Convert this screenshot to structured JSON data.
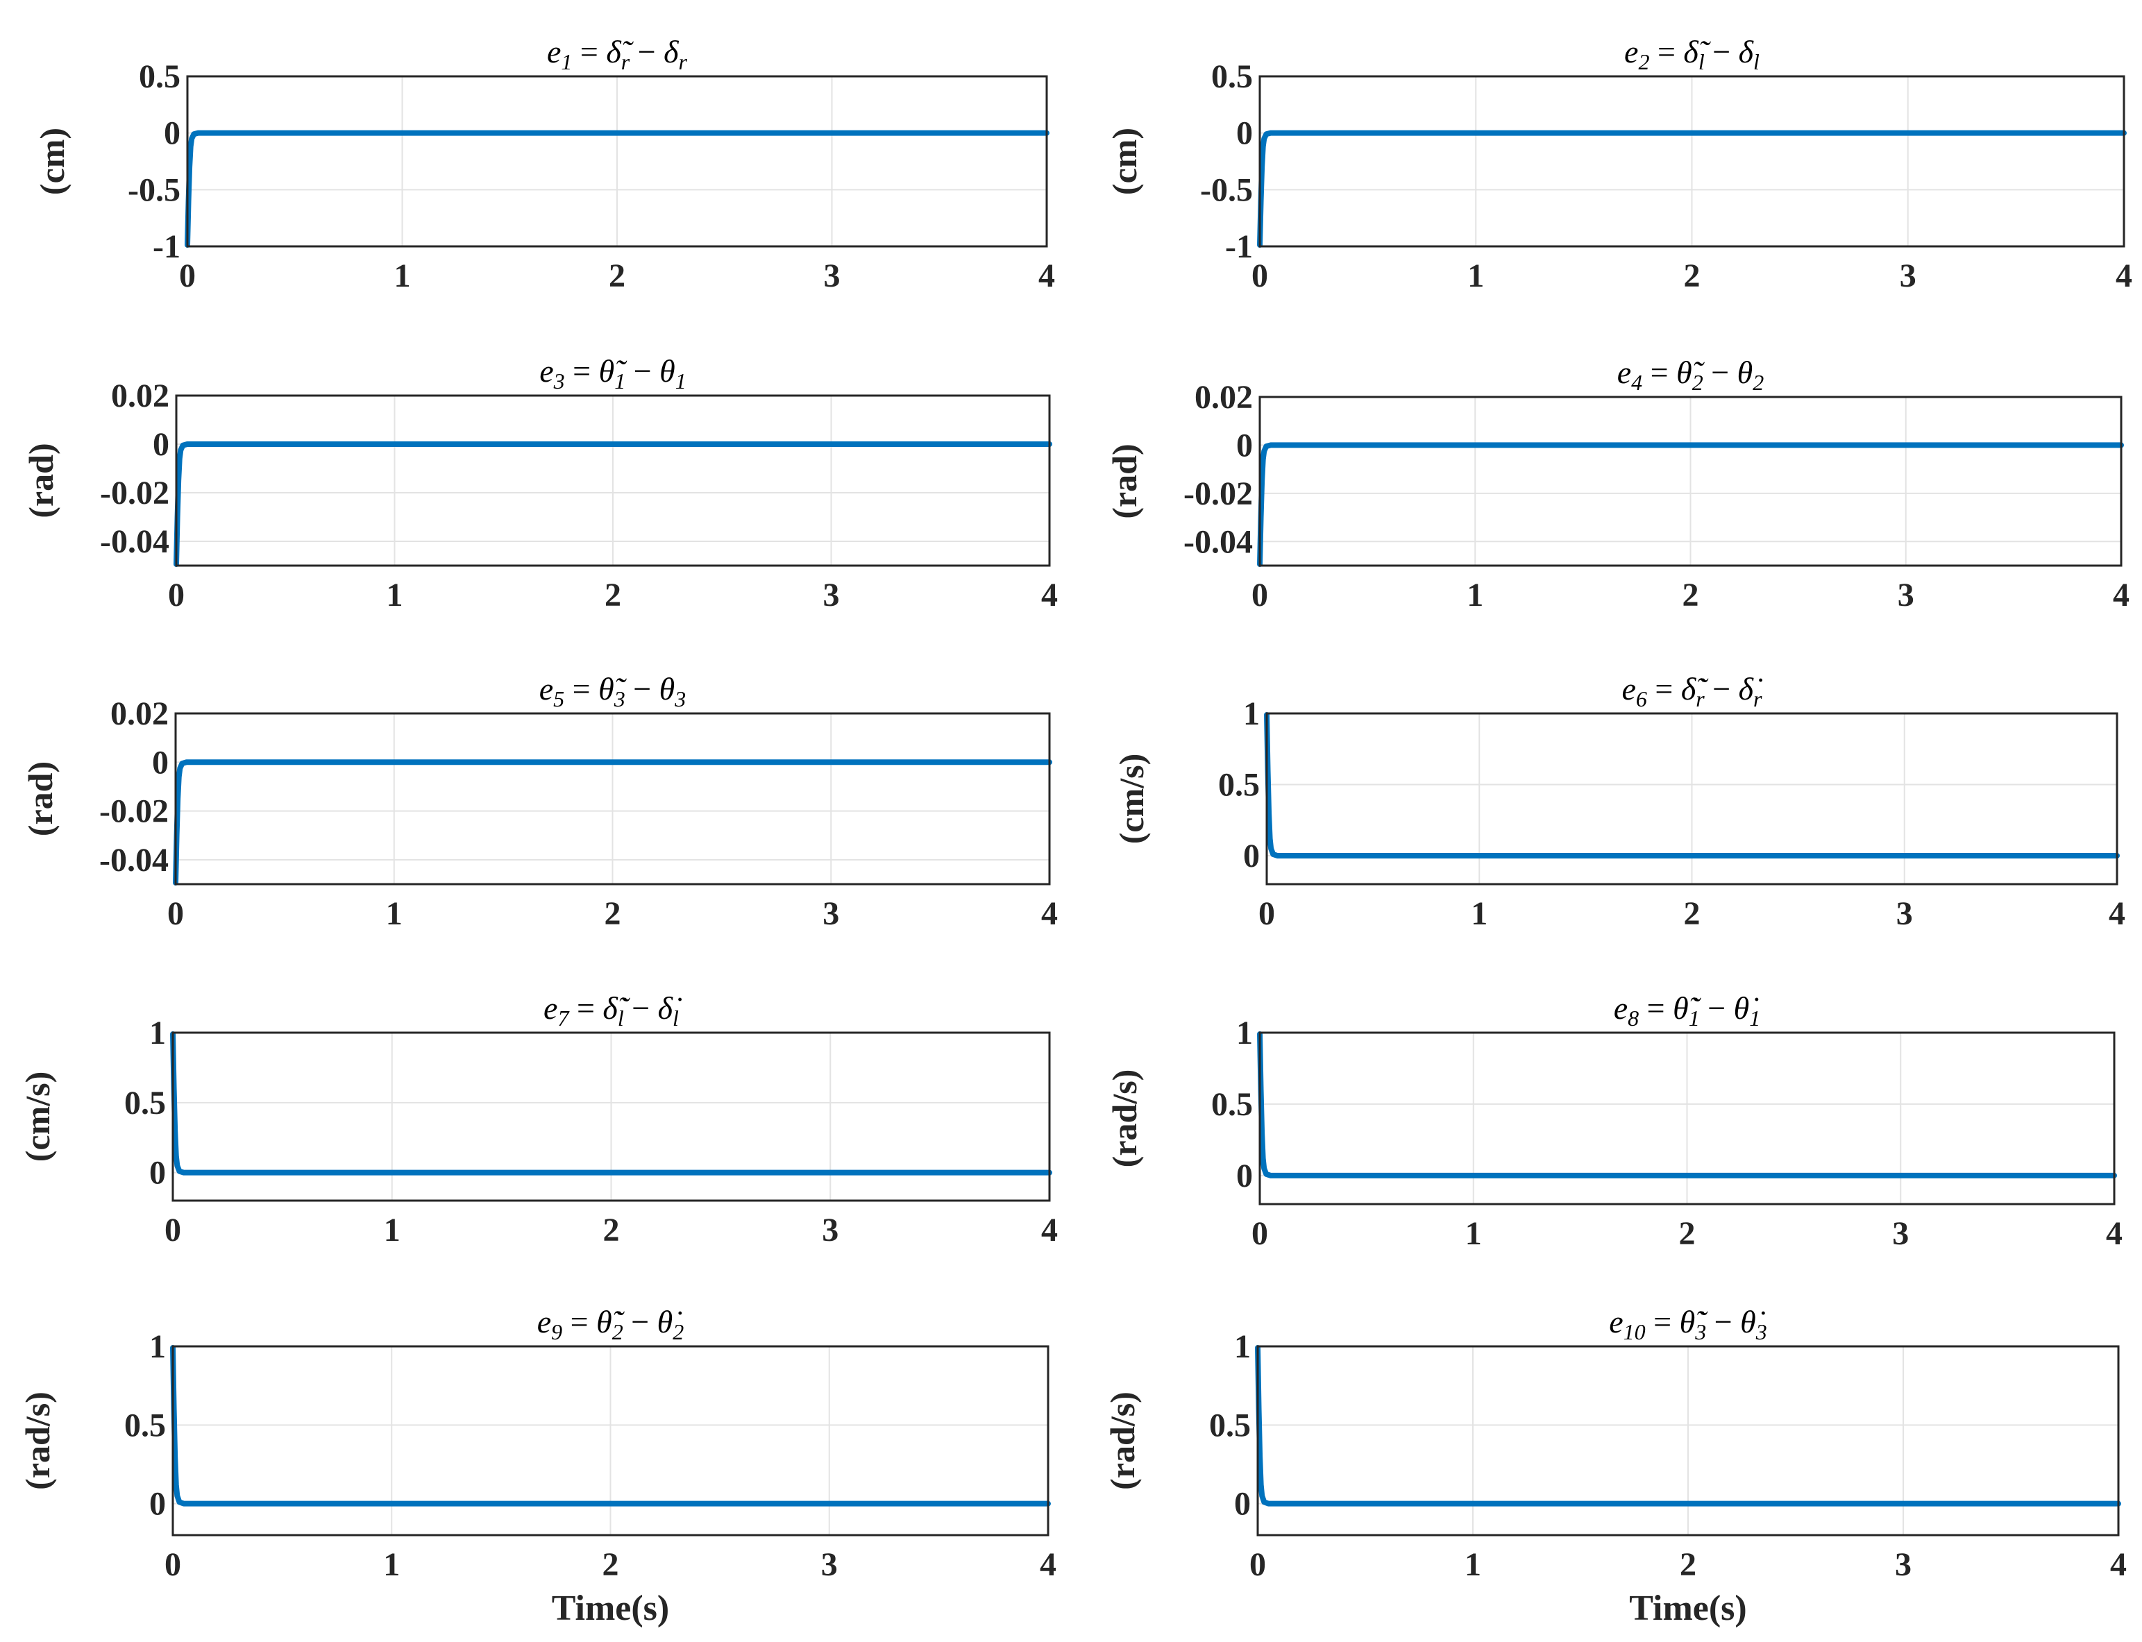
{
  "figure": {
    "background": "#ffffff",
    "series_color": "#0072bd",
    "grid_color": "#e3e3e3",
    "axis_color": "#262626"
  },
  "chart_data": [
    {
      "type": "line",
      "title": "e1 = δ̃r − δr",
      "title_parts": {
        "var": "e",
        "sub": "1",
        "base": "δ",
        "mark": "̃",
        "sub2": "r"
      },
      "xlabel": "",
      "ylabel": "(cm)",
      "xlim": [
        0,
        4
      ],
      "ylim": [
        -1,
        0.5
      ],
      "xticks": [
        "0",
        "1",
        "2",
        "3",
        "4"
      ],
      "yticks": [
        {
          "v": -1,
          "t": "-1"
        },
        {
          "v": -0.5,
          "t": "-0.5"
        },
        {
          "v": 0,
          "t": "0"
        },
        {
          "v": 0.5,
          "t": "0.5"
        }
      ],
      "series": [
        {
          "name": "e1",
          "x": [
            0,
            0.005,
            0.01,
            0.015,
            0.02,
            0.03,
            0.05,
            0.1,
            4
          ],
          "y": [
            -1,
            -0.6,
            -0.3,
            -0.12,
            -0.05,
            -0.01,
            0,
            0,
            0
          ]
        }
      ]
    },
    {
      "type": "line",
      "title": "e2 = δ̃l − δl",
      "title_parts": {
        "var": "e",
        "sub": "2",
        "base": "δ",
        "mark": "̃",
        "sub2": "l"
      },
      "xlabel": "",
      "ylabel": "(cm)",
      "xlim": [
        0,
        4
      ],
      "ylim": [
        -1,
        0.5
      ],
      "xticks": [
        "0",
        "1",
        "2",
        "3",
        "4"
      ],
      "yticks": [
        {
          "v": -1,
          "t": "-1"
        },
        {
          "v": -0.5,
          "t": "-0.5"
        },
        {
          "v": 0,
          "t": "0"
        },
        {
          "v": 0.5,
          "t": "0.5"
        }
      ],
      "series": [
        {
          "name": "e2",
          "x": [
            0,
            0.005,
            0.01,
            0.015,
            0.02,
            0.03,
            0.05,
            0.1,
            4
          ],
          "y": [
            -1,
            -0.6,
            -0.3,
            -0.12,
            -0.05,
            -0.01,
            0,
            0,
            0
          ]
        }
      ]
    },
    {
      "type": "line",
      "title": "e3 = θ̃1 − θ1",
      "title_parts": {
        "var": "e",
        "sub": "3",
        "base": "θ",
        "mark": "̃",
        "sub2": "1"
      },
      "xlabel": "",
      "ylabel": "(rad)",
      "xlim": [
        0,
        4
      ],
      "ylim": [
        -0.05,
        0.02
      ],
      "xticks": [
        "0",
        "1",
        "2",
        "3",
        "4"
      ],
      "yticks": [
        {
          "v": -0.04,
          "t": "-0.04"
        },
        {
          "v": -0.02,
          "t": "-0.02"
        },
        {
          "v": 0,
          "t": "0"
        },
        {
          "v": 0.02,
          "t": "0.02"
        }
      ],
      "series": [
        {
          "name": "e3",
          "x": [
            0,
            0.005,
            0.01,
            0.015,
            0.02,
            0.03,
            0.05,
            0.1,
            4
          ],
          "y": [
            -0.05,
            -0.03,
            -0.015,
            -0.006,
            -0.0025,
            -0.0005,
            0,
            0,
            0
          ]
        }
      ]
    },
    {
      "type": "line",
      "title": "e4 = θ̃2 − θ2",
      "title_parts": {
        "var": "e",
        "sub": "4",
        "base": "θ",
        "mark": "̃",
        "sub2": "2"
      },
      "xlabel": "",
      "ylabel": "(rad)",
      "xlim": [
        0,
        4
      ],
      "ylim": [
        -0.05,
        0.02
      ],
      "xticks": [
        "0",
        "1",
        "2",
        "3",
        "4"
      ],
      "yticks": [
        {
          "v": -0.04,
          "t": "-0.04"
        },
        {
          "v": -0.02,
          "t": "-0.02"
        },
        {
          "v": 0,
          "t": "0"
        },
        {
          "v": 0.02,
          "t": "0.02"
        }
      ],
      "series": [
        {
          "name": "e4",
          "x": [
            0,
            0.005,
            0.01,
            0.015,
            0.02,
            0.03,
            0.05,
            0.1,
            4
          ],
          "y": [
            -0.05,
            -0.03,
            -0.015,
            -0.006,
            -0.0025,
            -0.0005,
            0,
            0,
            0
          ]
        }
      ]
    },
    {
      "type": "line",
      "title": "e5 = θ̃3 − θ3",
      "title_parts": {
        "var": "e",
        "sub": "5",
        "base": "θ",
        "mark": "̃",
        "sub2": "3"
      },
      "xlabel": "",
      "ylabel": "(rad)",
      "xlim": [
        0,
        4
      ],
      "ylim": [
        -0.05,
        0.02
      ],
      "xticks": [
        "0",
        "1",
        "2",
        "3",
        "4"
      ],
      "yticks": [
        {
          "v": -0.04,
          "t": "-0.04"
        },
        {
          "v": -0.02,
          "t": "-0.02"
        },
        {
          "v": 0,
          "t": "0"
        },
        {
          "v": 0.02,
          "t": "0.02"
        }
      ],
      "series": [
        {
          "name": "e5",
          "x": [
            0,
            0.005,
            0.01,
            0.015,
            0.02,
            0.03,
            0.05,
            0.1,
            4
          ],
          "y": [
            -0.05,
            -0.03,
            -0.015,
            -0.006,
            -0.0025,
            -0.0005,
            0,
            0,
            0
          ]
        }
      ]
    },
    {
      "type": "line",
      "title": "e6 = δ̃̇r − δ̇r",
      "title_parts": {
        "var": "e",
        "sub": "6",
        "base": "δ",
        "mark": "̃̇",
        "sub2": "r"
      },
      "xlabel": "",
      "ylabel": "(cm/s)",
      "xlim": [
        0,
        4
      ],
      "ylim": [
        -0.2,
        1
      ],
      "xticks": [
        "0",
        "1",
        "2",
        "3",
        "4"
      ],
      "yticks": [
        {
          "v": 0,
          "t": "0"
        },
        {
          "v": 0.5,
          "t": "0.5"
        },
        {
          "v": 1,
          "t": "1"
        }
      ],
      "series": [
        {
          "name": "e6",
          "x": [
            0,
            0.005,
            0.01,
            0.015,
            0.02,
            0.03,
            0.05,
            0.1,
            4
          ],
          "y": [
            1,
            0.6,
            0.3,
            0.12,
            0.05,
            0.01,
            0,
            0,
            0
          ]
        }
      ]
    },
    {
      "type": "line",
      "title": "e7 = δ̃̇l − δ̇l",
      "title_parts": {
        "var": "e",
        "sub": "7",
        "base": "δ",
        "mark": "̃̇",
        "sub2": "l"
      },
      "xlabel": "",
      "ylabel": "(cm/s)",
      "xlim": [
        0,
        4
      ],
      "ylim": [
        -0.2,
        1
      ],
      "xticks": [
        "0",
        "1",
        "2",
        "3",
        "4"
      ],
      "yticks": [
        {
          "v": 0,
          "t": "0"
        },
        {
          "v": 0.5,
          "t": "0.5"
        },
        {
          "v": 1,
          "t": "1"
        }
      ],
      "series": [
        {
          "name": "e7",
          "x": [
            0,
            0.005,
            0.01,
            0.015,
            0.02,
            0.03,
            0.05,
            0.1,
            4
          ],
          "y": [
            1,
            0.6,
            0.3,
            0.12,
            0.05,
            0.01,
            0,
            0,
            0
          ]
        }
      ]
    },
    {
      "type": "line",
      "title": "e8 = θ̃̇1 − θ̇1",
      "title_parts": {
        "var": "e",
        "sub": "8",
        "base": "θ",
        "mark": "̃̇",
        "sub2": "1"
      },
      "xlabel": "",
      "ylabel": "(rad/s)",
      "xlim": [
        0,
        4
      ],
      "ylim": [
        -0.2,
        1
      ],
      "xticks": [
        "0",
        "1",
        "2",
        "3",
        "4"
      ],
      "yticks": [
        {
          "v": 0,
          "t": "0"
        },
        {
          "v": 0.5,
          "t": "0.5"
        },
        {
          "v": 1,
          "t": "1"
        }
      ],
      "series": [
        {
          "name": "e8",
          "x": [
            0,
            0.005,
            0.01,
            0.015,
            0.02,
            0.03,
            0.05,
            0.1,
            4
          ],
          "y": [
            1,
            0.6,
            0.3,
            0.12,
            0.05,
            0.01,
            0,
            0,
            0
          ]
        }
      ]
    },
    {
      "type": "line",
      "title": "e9 = θ̃̇2 − θ̇2",
      "title_parts": {
        "var": "e",
        "sub": "9",
        "base": "θ",
        "mark": "̃̇",
        "sub2": "2"
      },
      "xlabel": "Time(s)",
      "ylabel": "(rad/s)",
      "xlim": [
        0,
        4
      ],
      "ylim": [
        -0.2,
        1
      ],
      "xticks": [
        "0",
        "1",
        "2",
        "3",
        "4"
      ],
      "yticks": [
        {
          "v": 0,
          "t": "0"
        },
        {
          "v": 0.5,
          "t": "0.5"
        },
        {
          "v": 1,
          "t": "1"
        }
      ],
      "series": [
        {
          "name": "e9",
          "x": [
            0,
            0.005,
            0.01,
            0.015,
            0.02,
            0.03,
            0.05,
            0.1,
            4
          ],
          "y": [
            1,
            0.6,
            0.3,
            0.12,
            0.05,
            0.01,
            0,
            0,
            0
          ]
        }
      ]
    },
    {
      "type": "line",
      "title": "e10 = θ̃̇3 − θ̇3",
      "title_parts": {
        "var": "e",
        "sub": "10",
        "base": "θ",
        "mark": "̃̇",
        "sub2": "3"
      },
      "xlabel": "Time(s)",
      "ylabel": "(rad/s)",
      "xlim": [
        0,
        4
      ],
      "ylim": [
        -0.2,
        1
      ],
      "xticks": [
        "0",
        "1",
        "2",
        "3",
        "4"
      ],
      "yticks": [
        {
          "v": 0,
          "t": "0"
        },
        {
          "v": 0.5,
          "t": "0.5"
        },
        {
          "v": 1,
          "t": "1"
        }
      ],
      "series": [
        {
          "name": "e10",
          "x": [
            0,
            0.005,
            0.01,
            0.015,
            0.02,
            0.03,
            0.05,
            0.1,
            4
          ],
          "y": [
            1,
            0.6,
            0.3,
            0.12,
            0.05,
            0.01,
            0,
            0,
            0
          ]
        }
      ]
    }
  ]
}
